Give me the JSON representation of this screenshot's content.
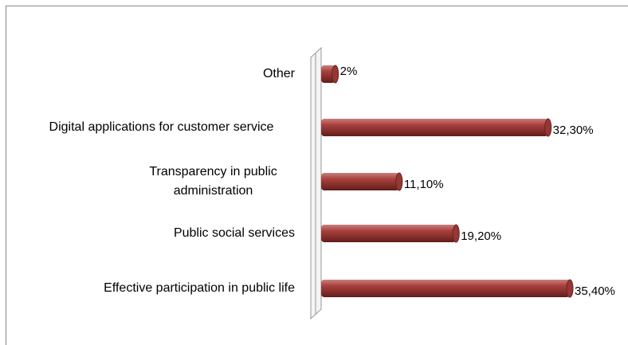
{
  "chart_data": {
    "type": "bar",
    "orientation": "horizontal",
    "categories": [
      "Other",
      "Digital applications for customer service",
      "Transparency in public administration",
      "Public social services",
      "Effective participation in public life"
    ],
    "values": [
      2,
      32.3,
      11.1,
      19.2,
      35.4
    ],
    "value_labels": [
      "2%",
      "32,30%",
      "11,10%",
      "19,20%",
      "35,40%"
    ],
    "color": "#953735"
  }
}
